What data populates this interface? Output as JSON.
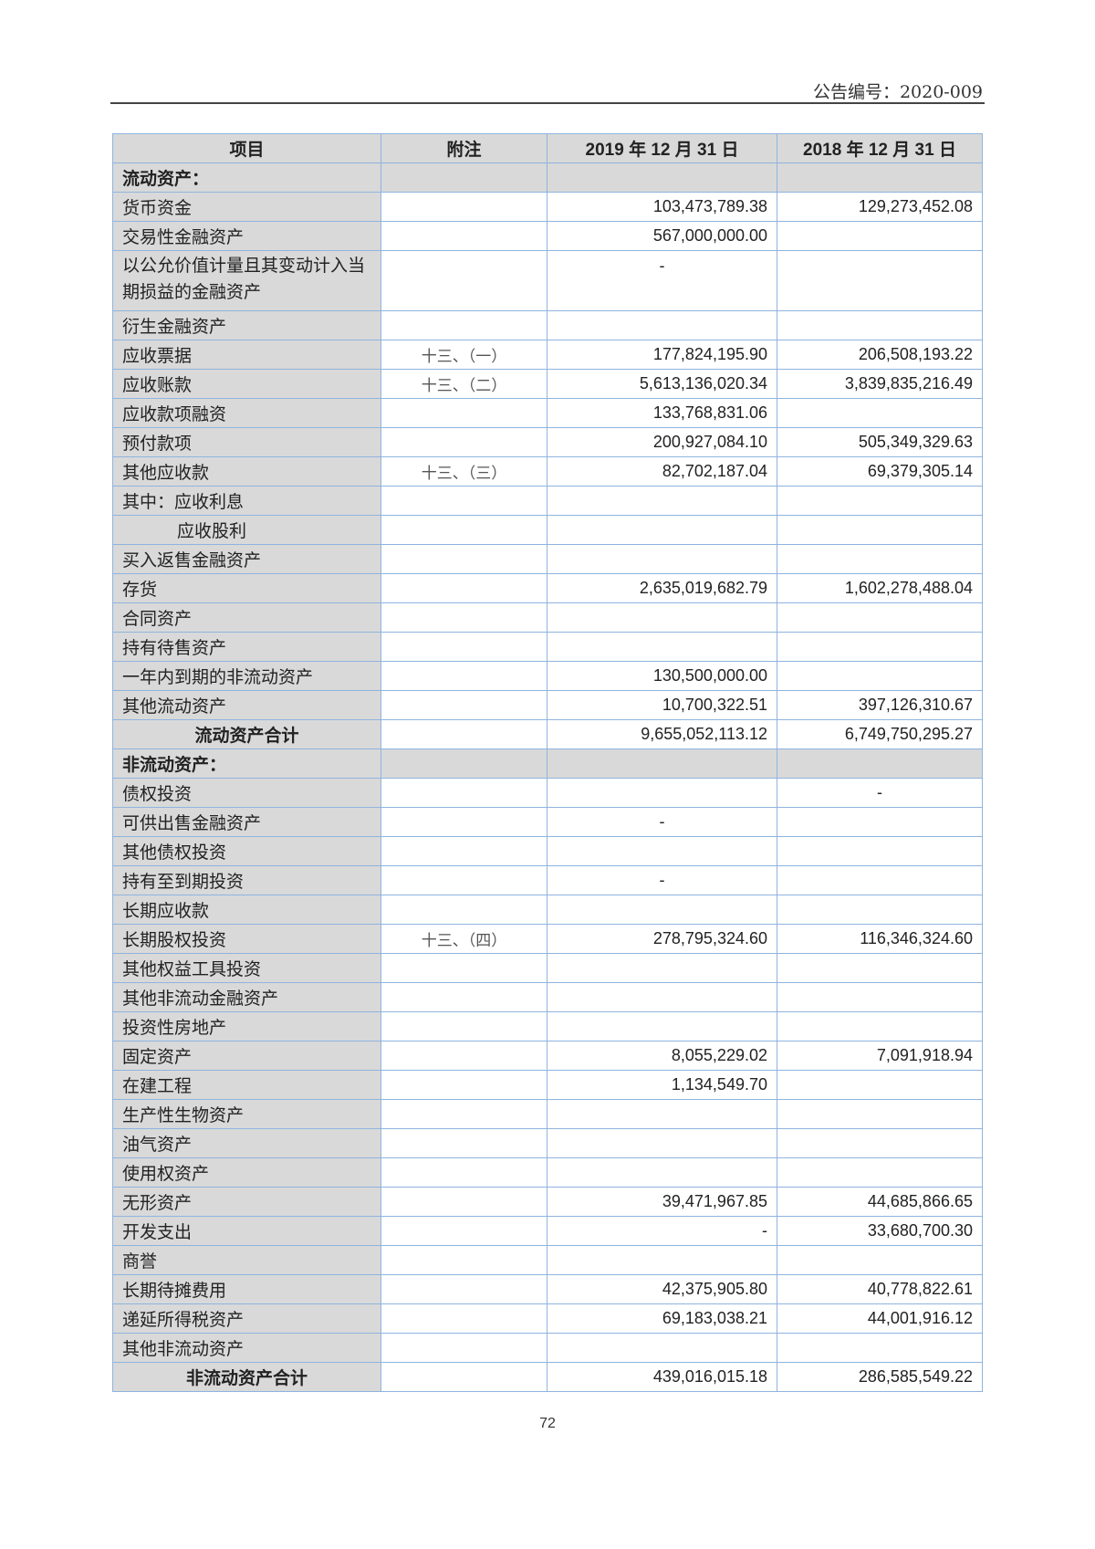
{
  "header": {
    "document_number": "公告编号：2020-009"
  },
  "table": {
    "columns": [
      "项目",
      "附注",
      "2019 年 12 月 31 日",
      "2018 年 12 月 31 日"
    ],
    "rows": [
      {
        "label": "流动资产：",
        "note": "",
        "v2019": "",
        "v2018": "",
        "type": "section"
      },
      {
        "label": "货币资金",
        "note": "",
        "v2019": "103,473,789.38",
        "v2018": "129,273,452.08"
      },
      {
        "label": "交易性金融资产",
        "note": "",
        "v2019": "567,000,000.00",
        "v2018": ""
      },
      {
        "label": "以公允价值计量且其变动计入当期损益的金融资产",
        "note": "",
        "v2019": "-",
        "v2018": "",
        "type": "tall"
      },
      {
        "label": "衍生金融资产",
        "note": "",
        "v2019": "",
        "v2018": ""
      },
      {
        "label": "应收票据",
        "note": "十三、（一）",
        "v2019": "177,824,195.90",
        "v2018": "206,508,193.22"
      },
      {
        "label": "应收账款",
        "note": "十三、（二）",
        "v2019": "5,613,136,020.34",
        "v2018": "3,839,835,216.49"
      },
      {
        "label": "应收款项融资",
        "note": "",
        "v2019": "133,768,831.06",
        "v2018": ""
      },
      {
        "label": "预付款项",
        "note": "",
        "v2019": "200,927,084.10",
        "v2018": "505,349,329.63"
      },
      {
        "label": "其他应收款",
        "note": "十三、（三）",
        "v2019": "82,702,187.04",
        "v2018": "69,379,305.14"
      },
      {
        "label": "其中：应收利息",
        "note": "",
        "v2019": "",
        "v2018": ""
      },
      {
        "label": "应收股利",
        "note": "",
        "v2019": "",
        "v2018": "",
        "type": "indent"
      },
      {
        "label": "买入返售金融资产",
        "note": "",
        "v2019": "",
        "v2018": ""
      },
      {
        "label": "存货",
        "note": "",
        "v2019": "2,635,019,682.79",
        "v2018": "1,602,278,488.04"
      },
      {
        "label": "合同资产",
        "note": "",
        "v2019": "",
        "v2018": ""
      },
      {
        "label": "持有待售资产",
        "note": "",
        "v2019": "",
        "v2018": ""
      },
      {
        "label": "一年内到期的非流动资产",
        "note": "",
        "v2019": "130,500,000.00",
        "v2018": ""
      },
      {
        "label": "其他流动资产",
        "note": "",
        "v2019": "10,700,322.51",
        "v2018": "397,126,310.67"
      },
      {
        "label": "流动资产合计",
        "note": "",
        "v2019": "9,655,052,113.12",
        "v2018": "6,749,750,295.27",
        "type": "subtotal"
      },
      {
        "label": "非流动资产：",
        "note": "",
        "v2019": "",
        "v2018": "",
        "type": "section"
      },
      {
        "label": "债权投资",
        "note": "",
        "v2019": "",
        "v2018": "-"
      },
      {
        "label": "可供出售金融资产",
        "note": "",
        "v2019": "-",
        "v2018": ""
      },
      {
        "label": "其他债权投资",
        "note": "",
        "v2019": "",
        "v2018": ""
      },
      {
        "label": "持有至到期投资",
        "note": "",
        "v2019": "-",
        "v2018": ""
      },
      {
        "label": "长期应收款",
        "note": "",
        "v2019": "",
        "v2018": ""
      },
      {
        "label": "长期股权投资",
        "note": "十三、（四）",
        "v2019": "278,795,324.60",
        "v2018": "116,346,324.60"
      },
      {
        "label": "其他权益工具投资",
        "note": "",
        "v2019": "",
        "v2018": ""
      },
      {
        "label": "其他非流动金融资产",
        "note": "",
        "v2019": "",
        "v2018": ""
      },
      {
        "label": "投资性房地产",
        "note": "",
        "v2019": "",
        "v2018": ""
      },
      {
        "label": "固定资产",
        "note": "",
        "v2019": "8,055,229.02",
        "v2018": "7,091,918.94"
      },
      {
        "label": "在建工程",
        "note": "",
        "v2019": "1,134,549.70",
        "v2018": ""
      },
      {
        "label": "生产性生物资产",
        "note": "",
        "v2019": "",
        "v2018": ""
      },
      {
        "label": "油气资产",
        "note": "",
        "v2019": "",
        "v2018": ""
      },
      {
        "label": "使用权资产",
        "note": "",
        "v2019": "",
        "v2018": ""
      },
      {
        "label": "无形资产",
        "note": "",
        "v2019": "39,471,967.85",
        "v2018": "44,685,866.65"
      },
      {
        "label": "开发支出",
        "note": "",
        "v2019": "-",
        "v2018": "33,680,700.30",
        "dash_right": true
      },
      {
        "label": "商誉",
        "note": "",
        "v2019": "",
        "v2018": ""
      },
      {
        "label": "长期待摊费用",
        "note": "",
        "v2019": "42,375,905.80",
        "v2018": "40,778,822.61"
      },
      {
        "label": "递延所得税资产",
        "note": "",
        "v2019": "69,183,038.21",
        "v2018": "44,001,916.12"
      },
      {
        "label": "其他非流动资产",
        "note": "",
        "v2019": "",
        "v2018": ""
      },
      {
        "label": "非流动资产合计",
        "note": "",
        "v2019": "439,016,015.18",
        "v2018": "286,585,549.22",
        "type": "subtotal"
      }
    ]
  },
  "footer": {
    "page_number": "72"
  }
}
